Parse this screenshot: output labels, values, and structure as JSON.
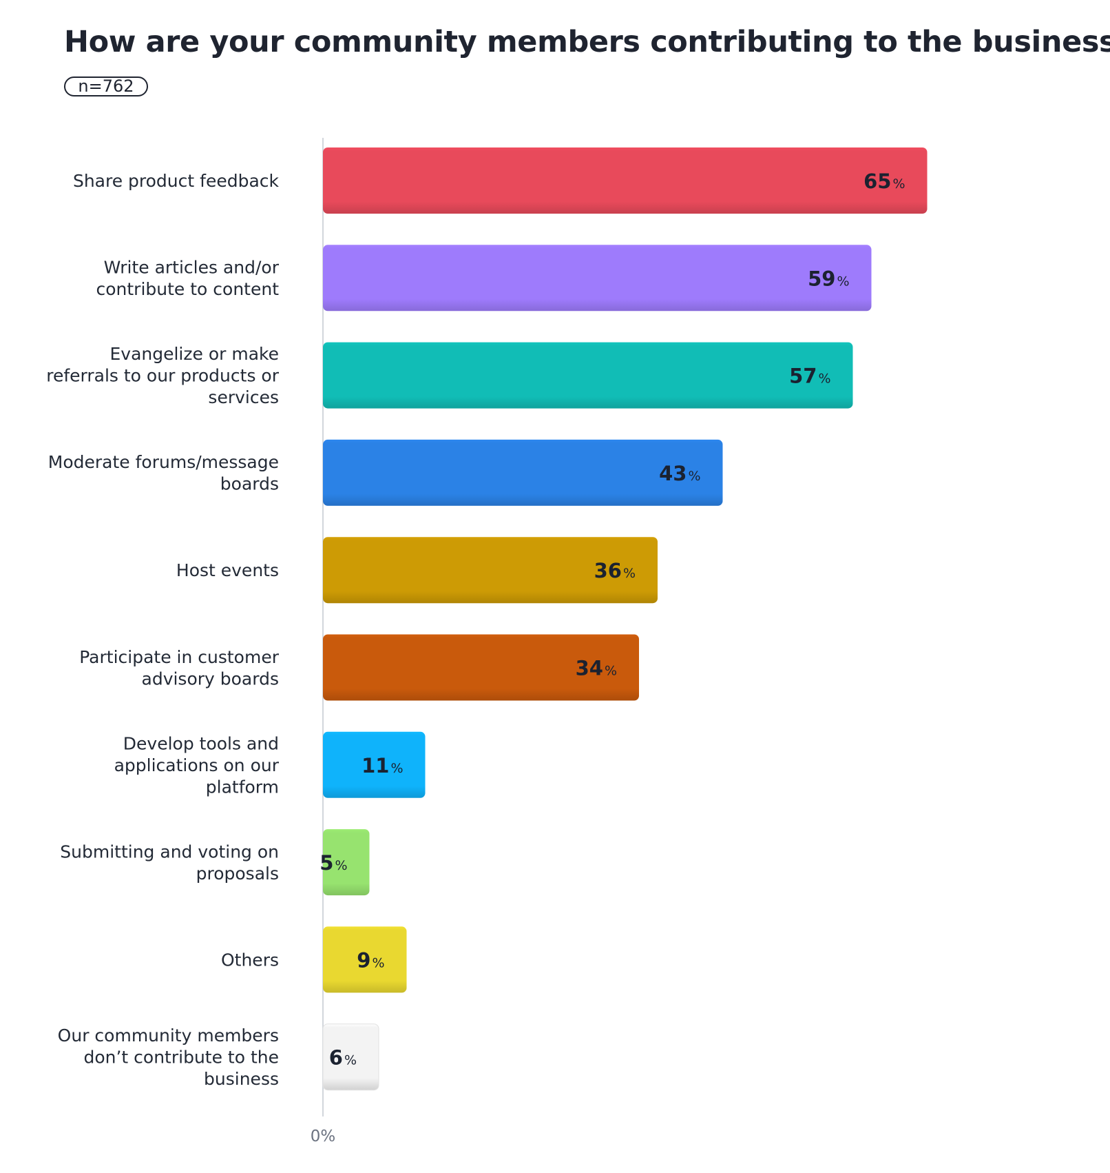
{
  "chart_data": {
    "type": "bar",
    "orientation": "horizontal",
    "title": "How are your community members contributing to the business?",
    "sample_label": "n=762",
    "categories": [
      "Share product feedback",
      "Write articles and/or contribute to content",
      "Evangelize or make referrals to our products or services",
      "Moderate forums/message boards",
      "Host events",
      "Participate in customer advisory boards",
      "Develop tools and applications on our platform",
      "Submitting and voting on proposals",
      "Others",
      "Our community members don’t contribute to the business"
    ],
    "category_lines": [
      [
        "Share product feedback"
      ],
      [
        "Write articles and/or",
        "contribute to content"
      ],
      [
        "Evangelize or make",
        "referrals to our products or",
        "services"
      ],
      [
        "Moderate forums/message",
        "boards"
      ],
      [
        "Host events"
      ],
      [
        "Participate in customer",
        "advisory boards"
      ],
      [
        "Develop tools and",
        "applications on our",
        "platform"
      ],
      [
        "Submitting and voting on",
        "proposals"
      ],
      [
        "Others"
      ],
      [
        "Our community members",
        "don’t contribute to the",
        "business"
      ]
    ],
    "values": [
      65,
      59,
      57,
      43,
      36,
      34,
      11,
      5,
      9,
      6
    ],
    "value_suffix": "%",
    "bar_colors": [
      "#e84a5b",
      "#9e7bfc",
      "#11bdb6",
      "#2b82e6",
      "#cd9b05",
      "#c95a0c",
      "#0fb3fb",
      "#97e36f",
      "#e9d830",
      "#f3f3f3"
    ],
    "x_tick_labels": [
      "0%"
    ],
    "xlim": [
      0,
      70
    ],
    "xlabel": "",
    "ylabel": "",
    "grid": false,
    "legend": "none"
  }
}
